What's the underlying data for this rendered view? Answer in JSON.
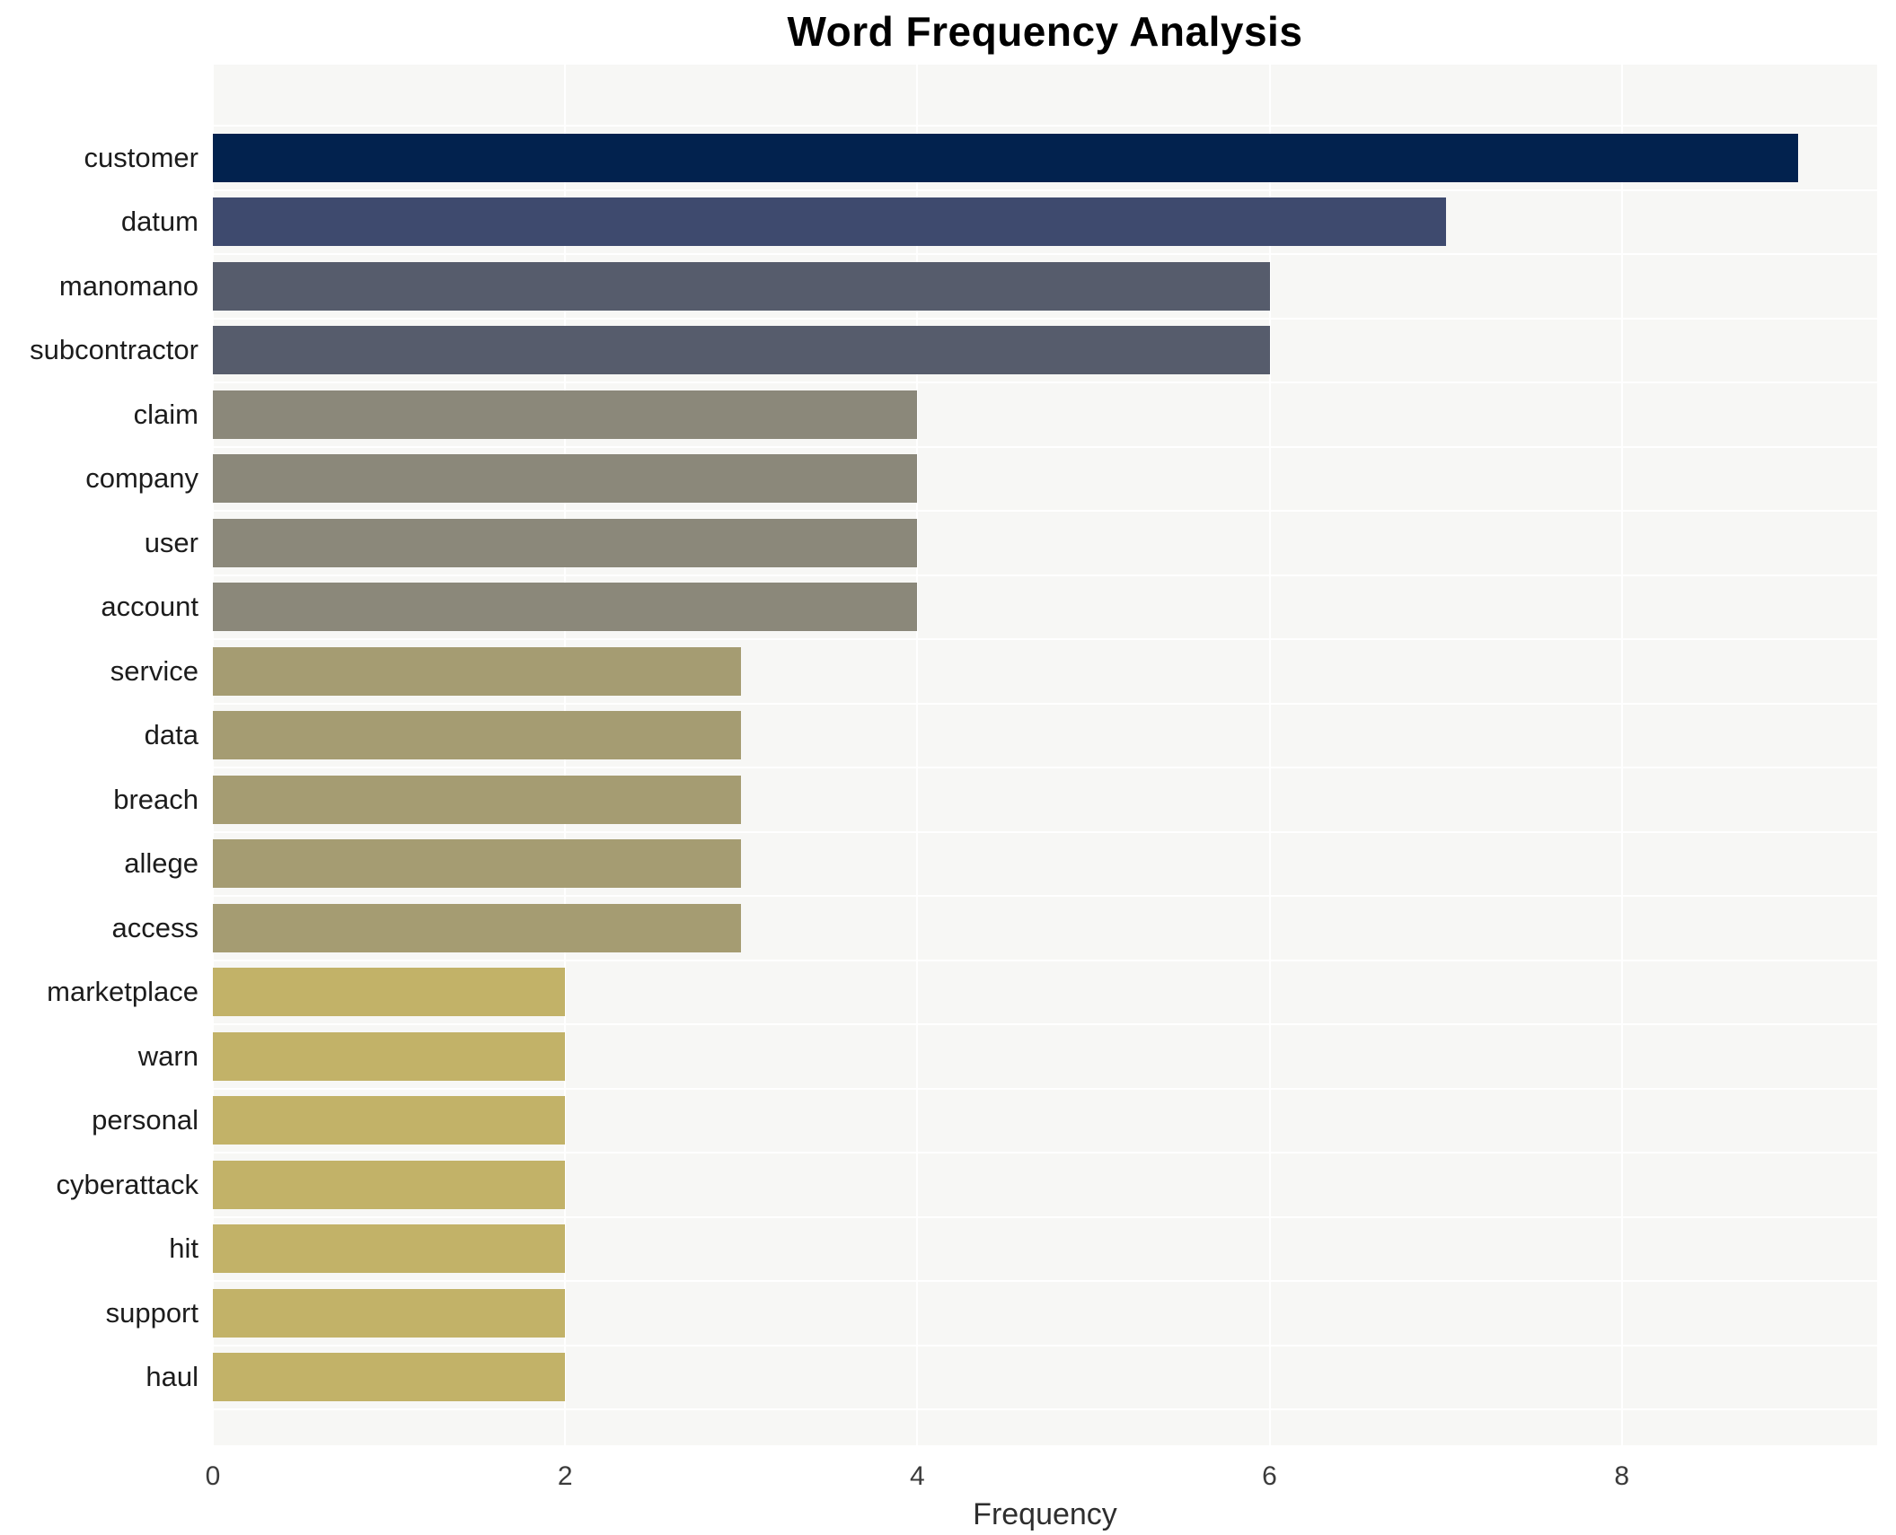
{
  "chart_data": {
    "type": "bar",
    "orientation": "horizontal",
    "title": "Word Frequency Analysis",
    "xlabel": "Frequency",
    "ylabel": "",
    "categories": [
      "customer",
      "datum",
      "manomano",
      "subcontractor",
      "claim",
      "company",
      "user",
      "account",
      "service",
      "data",
      "breach",
      "allege",
      "access",
      "marketplace",
      "warn",
      "personal",
      "cyberattack",
      "hit",
      "support",
      "haul"
    ],
    "values": [
      9,
      7,
      6,
      6,
      4,
      4,
      4,
      4,
      3,
      3,
      3,
      3,
      3,
      2,
      2,
      2,
      2,
      2,
      2,
      2
    ],
    "bar_colors": [
      "#02224E",
      "#3E4A6E",
      "#565C6C",
      "#565C6C",
      "#8B887A",
      "#8B887A",
      "#8B887A",
      "#8B887A",
      "#A59C72",
      "#A59C72",
      "#A59C72",
      "#A59C72",
      "#A59C72",
      "#C2B268",
      "#C2B268",
      "#C2B268",
      "#C2B268",
      "#C2B268",
      "#C2B268",
      "#C2B268"
    ],
    "xticks": [
      0,
      2,
      4,
      6,
      8
    ],
    "xlim": [
      0,
      9.45
    ],
    "grid": true,
    "legend": false,
    "plot_background": "#F7F7F5",
    "grid_color": "#FFFFFF",
    "colors": {
      "title_text": "#000000",
      "label_text": "#1c1c1c",
      "tick_text": "#3b3b3b",
      "axis_label_text": "#2e2e2e"
    }
  }
}
